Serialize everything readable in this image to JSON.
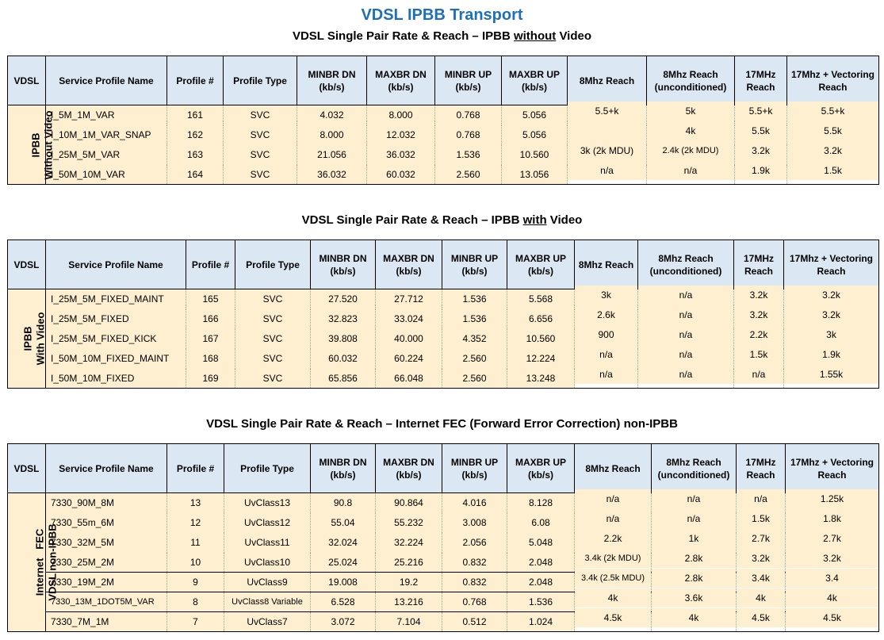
{
  "title": "VDSL IPBB Transport",
  "headers": [
    "VDSL",
    "Service Profile Name",
    "Profile #",
    "Profile Type",
    "MINBR DN (kb/s)",
    "MAXBR DN (kb/s)",
    "MINBR UP (kb/s)",
    "MAXBR UP (kb/s)"
  ],
  "sections": [
    {
      "title_pre": "VDSL Single Pair Rate & Reach – IPBB ",
      "title_u": "without",
      "title_post": " Video",
      "group_line1": "IPBB",
      "group_line2": "Without Video",
      "reach_headers": [
        "8Mhz Reach",
        "8Mhz Reach (unconditioned)",
        "17MHz Reach",
        "17Mhz + Vectoring Reach"
      ],
      "rows": [
        [
          "I_5M_1M_VAR",
          "161",
          "SVC",
          "4.032",
          "8.000",
          "0.768",
          "5.056",
          "5.5+k",
          "5k",
          "5.5+k",
          "5.5+k"
        ],
        [
          "I_10M_1M_VAR_SNAP",
          "162",
          "SVC",
          "8.000",
          "12.032",
          "0.768",
          "5.056",
          "",
          "4k",
          "5.5k",
          "5.5k"
        ],
        [
          "I_25M_5M_VAR",
          "163",
          "SVC",
          "21.056",
          "36.032",
          "1.536",
          "10.560",
          "3k (2k MDU)",
          "2.4k (2k MDU)",
          "3.2k",
          "3.2k"
        ],
        [
          "I_50M_10M_VAR",
          "164",
          "SVC",
          "36.032",
          "60.032",
          "2.560",
          "13.056",
          "n/a",
          "n/a",
          "1.9k",
          "1.5k"
        ]
      ]
    },
    {
      "title_pre": "VDSL Single Pair Rate & Reach – IPBB ",
      "title_u": "with",
      "title_post": " Video",
      "group_line1": "IPBB",
      "group_line2": "With Video",
      "reach_headers": [
        "8Mhz Reach",
        "8Mhz Reach (unconditioned)",
        "17MHz Reach",
        "17Mhz + Vectoring Reach"
      ],
      "rows": [
        [
          "I_25M_5M_FIXED_MAINT",
          "165",
          "SVC",
          "27.520",
          "27.712",
          "1.536",
          "5.568",
          "3k",
          "n/a",
          "3.2k",
          "3.2k"
        ],
        [
          "I_25M_5M_FIXED",
          "166",
          "SVC",
          "32.823",
          "33.024",
          "1.536",
          "6.656",
          "2.6k",
          "n/a",
          "3.2k",
          "3.2k"
        ],
        [
          "I_25M_5M_FIXED_KICK",
          "167",
          "SVC",
          "39.808",
          "40.000",
          "4.352",
          "10.560",
          "900",
          "n/a",
          "2.2k",
          "3k"
        ],
        [
          "I_50M_10M_FIXED_MAINT",
          "168",
          "SVC",
          "60.032",
          "60.224",
          "2.560",
          "12.224",
          "n/a",
          "n/a",
          "1.5k",
          "1.9k"
        ],
        [
          "I_50M_10M_FIXED",
          "169",
          "SVC",
          "65.856",
          "66.048",
          "2.560",
          "13.248",
          "n/a",
          "n/a",
          "n/a",
          "1.55k"
        ]
      ]
    },
    {
      "title_pre": "VDSL Single Pair Rate & Reach – Internet FEC (Forward Error Correction) non-IPBB",
      "title_u": "",
      "title_post": "",
      "group_line1": "Internet   FEC",
      "group_line2": "VDSL non-IPBB",
      "reach_headers": [
        "8Mhz Reach",
        "8Mhz Reach (unconditioned)",
        "17MHz Reach",
        "17Mhz + Vectoring Reach"
      ],
      "rows": [
        [
          "7330_90M_8M",
          "13",
          "UvClass13",
          "90.8",
          "90.864",
          "4.016",
          "8.128",
          "n/a",
          "n/a",
          "n/a",
          "1.25k"
        ],
        [
          "7330_55m_6M",
          "12",
          "UvClass12",
          "55.04",
          "55.232",
          "3.008",
          "6.08",
          "n/a",
          "n/a",
          "1.5k",
          "1.8k"
        ],
        [
          "7330_32M_5M",
          "11",
          "UvClass11",
          "32.024",
          "32.224",
          "2.056",
          "5.048",
          "2.2k",
          "1k",
          "2.7k",
          "2.7k"
        ],
        [
          "7330_25M_2M",
          "10",
          "UvClass10",
          "25.024",
          "25.216",
          "0.832",
          "2.048",
          "3.4k (2k MDU)",
          "2.8k",
          "3.2k",
          "3.2k"
        ],
        [
          "7330_19M_2M",
          "9",
          "UvClass9",
          "19.008",
          "19.2",
          "0.832",
          "2.048",
          "3.4k (2.5k MDU)",
          "2.8k",
          "3.4k",
          "3.4"
        ],
        [
          "7330_13M_1DOT5M_VAR",
          "8",
          "UvClass8 Variable",
          "6.528",
          "13.216",
          "0.768",
          "1.536",
          "4k",
          "3.6k",
          "4k",
          "4k"
        ],
        [
          "7330_7M_1M",
          "7",
          "UvClass7",
          "3.072",
          "7.104",
          "0.512",
          "1.024",
          "4.5k",
          "4k",
          "4.5k",
          "4.5k"
        ]
      ]
    }
  ]
}
